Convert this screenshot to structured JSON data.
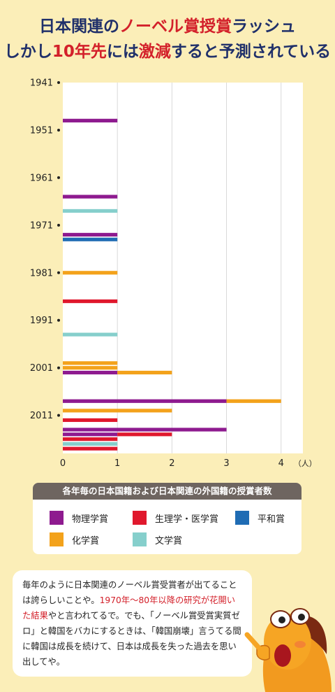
{
  "title": {
    "line1_a": "日本関連の",
    "line1_b": "ノーベル賞授賞",
    "line1_c": "ラッシュ",
    "line2_a": "しかし",
    "line2_b": "10年先",
    "line2_c": "には",
    "line2_d": "激減",
    "line2_e": "すると予測されている"
  },
  "chart_data": {
    "type": "bar",
    "orientation": "horizontal",
    "stacked": true,
    "title": "各年毎の日本国籍および日本関連の外国籍の授賞者数",
    "x_unit": "（人）",
    "xlim": [
      0,
      4.4
    ],
    "x_ticks": [
      0,
      1,
      2,
      3,
      4
    ],
    "ylim": [
      1941,
      2019
    ],
    "y_ticks": [
      1941,
      1951,
      1961,
      1971,
      1981,
      1991,
      2001,
      2011
    ],
    "colors": {
      "physics": "#8e1a8f",
      "medicine": "#e0182d",
      "peace": "#1f6cb4",
      "chemistry": "#f3a21b",
      "literature": "#86cfcc"
    },
    "series_names": {
      "physics": "物理学賞",
      "medicine": "生理学・医学賞",
      "peace": "平和賞",
      "chemistry": "化学賞",
      "literature": "文学賞"
    },
    "records": [
      {
        "year": 1949,
        "physics": 1
      },
      {
        "year": 1965,
        "physics": 1
      },
      {
        "year": 1968,
        "literature": 1
      },
      {
        "year": 1973,
        "physics": 1
      },
      {
        "year": 1974,
        "peace": 1
      },
      {
        "year": 1981,
        "chemistry": 1
      },
      {
        "year": 1987,
        "medicine": 1
      },
      {
        "year": 1994,
        "literature": 1
      },
      {
        "year": 2000,
        "chemistry": 1
      },
      {
        "year": 2001,
        "chemistry": 1
      },
      {
        "year": 2002,
        "physics": 1,
        "chemistry": 1
      },
      {
        "year": 2008,
        "physics": 3,
        "chemistry": 1
      },
      {
        "year": 2010,
        "chemistry": 2
      },
      {
        "year": 2012,
        "medicine": 1
      },
      {
        "year": 2014,
        "physics": 3
      },
      {
        "year": 2015,
        "physics": 1,
        "medicine": 1
      },
      {
        "year": 2016,
        "medicine": 1
      },
      {
        "year": 2017,
        "literature": 1
      },
      {
        "year": 2018,
        "medicine": 1
      }
    ]
  },
  "legend": {
    "heading": "各年毎の日本国籍および日本関連の外国籍の授賞者数",
    "items": [
      {
        "key": "physics",
        "label": "物理学賞",
        "color": "#8e1a8f"
      },
      {
        "key": "medicine",
        "label": "生理学・医学賞",
        "color": "#e0182d"
      },
      {
        "key": "peace",
        "label": "平和賞",
        "color": "#1f6cb4"
      },
      {
        "key": "chemistry",
        "label": "化学賞",
        "color": "#f3a21b"
      },
      {
        "key": "literature",
        "label": "文学賞",
        "color": "#86cfcc"
      }
    ]
  },
  "comment": {
    "part1": "毎年のように日本関連のノーベル賞受賞者が出てることは誇らしいことや。",
    "highlight": "1970年〜80年以降の研究が花開いた結果",
    "part2": "やと言われてるで。でも、「ノーベル賞受賞実質ゼロ」と韓国をバカにするときは、「韓国崩壊」言うてる間に韓国は成長を続けて、日本は成長を失った過去を思い出してや。"
  },
  "mascot_icon": "horse-mascot-icon"
}
